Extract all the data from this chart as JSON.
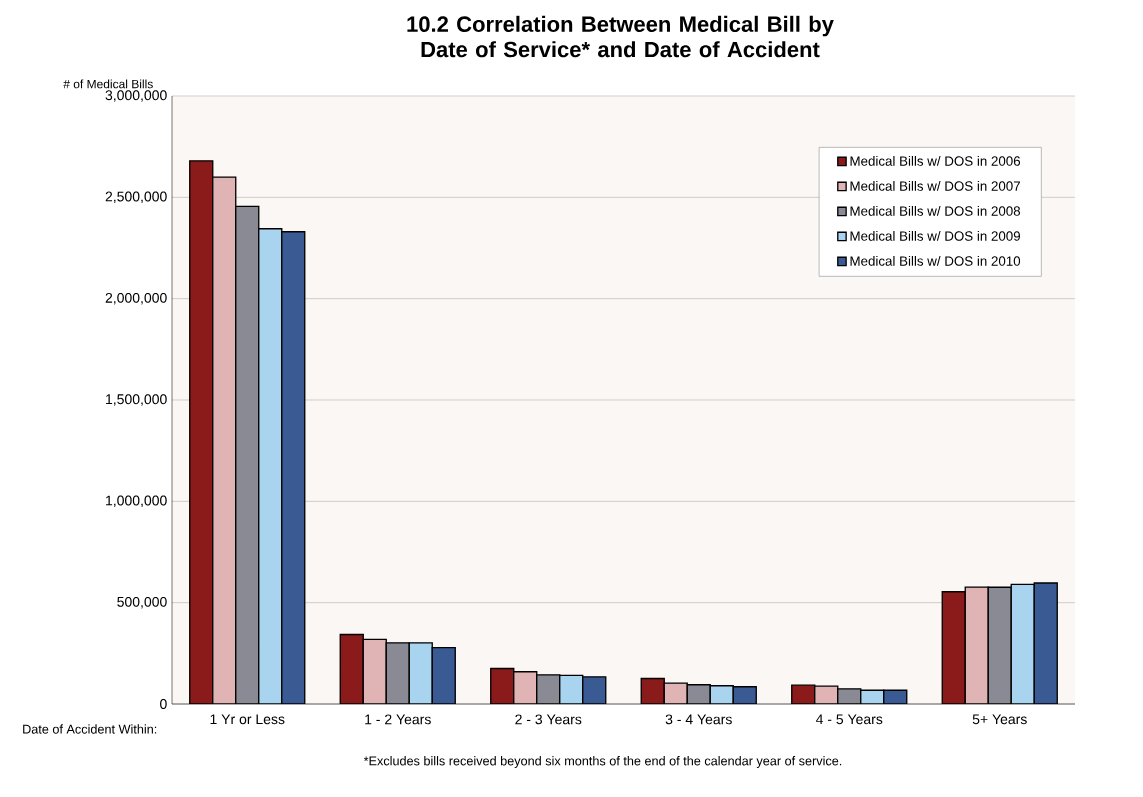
{
  "chart_data": {
    "type": "bar",
    "title": "10.2  Correlation Between Medical Bill by Date of Service* and Date of Accident",
    "ylabel": "# of Medical Bills",
    "xlabel": "Date of Accident Within:",
    "annotations": [
      "*Excludes bills received beyond six months of the end of the calendar year of service."
    ],
    "categories": [
      "1 Yr or Less",
      "1 - 2 Years",
      "2 - 3 Years",
      "3 - 4 Years",
      "4 - 5 Years",
      "5+ Years"
    ],
    "series": [
      {
        "name": "Medical Bills w/ DOS in 2006",
        "color": "#8b1a1a",
        "values": [
          2680000,
          343000,
          175000,
          126000,
          93000,
          554000
        ]
      },
      {
        "name": "Medical Bills w/ DOS in 2007",
        "color": "#e0b4b4",
        "values": [
          2600000,
          319000,
          159000,
          103000,
          88000,
          577000
        ]
      },
      {
        "name": "Medical Bills w/ DOS in 2008",
        "color": "#8a8a94",
        "values": [
          2455000,
          302000,
          144000,
          95000,
          75000,
          576000
        ]
      },
      {
        "name": "Medical Bills w/ DOS in 2009",
        "color": "#a8d4f0",
        "values": [
          2345000,
          302000,
          141000,
          90000,
          68000,
          590000
        ]
      },
      {
        "name": "Medical Bills w/ DOS in 2010",
        "color": "#3a5a94",
        "values": [
          2330000,
          278000,
          134000,
          85000,
          68000,
          597000
        ]
      }
    ],
    "ylim": [
      0,
      3000000
    ],
    "yticks": [
      0,
      {
        "value": 500000,
        "label": "500,000"
      },
      {
        "value": 1000000,
        "label": "1,000,000"
      },
      {
        "value": 1500000,
        "label": "1,500,000"
      },
      {
        "value": 2000000,
        "label": "2,000,000"
      },
      {
        "value": 2500000,
        "label": "2,500,000"
      },
      {
        "value": 3000000,
        "label": "3,000,000"
      }
    ],
    "grid": "y",
    "legend": "top right"
  }
}
